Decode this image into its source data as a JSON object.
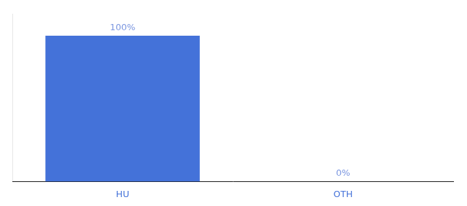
{
  "chart_data": {
    "type": "bar",
    "categories": [
      "HU",
      "OTH"
    ],
    "values": [
      100,
      0
    ],
    "value_labels": [
      "100%",
      "0%"
    ],
    "color": "#4472d9",
    "ylim": [
      0,
      115
    ],
    "yticks": [],
    "grid": false,
    "data_labels": true,
    "tick_labels": "x"
  }
}
